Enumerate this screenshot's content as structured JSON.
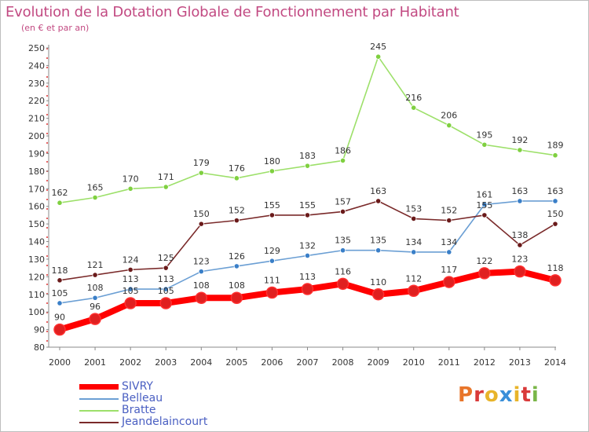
{
  "title": "Evolution de la Dotation Globale de Fonctionnement par Habitant",
  "subtitle": "(en € et par an)",
  "logo": {
    "text": "Proxiti",
    "colors": [
      "#e8752a",
      "#d93a3a",
      "#e8b42a",
      "#3a8fd9",
      "#e8b42a",
      "#d93a3a",
      "#7ab648"
    ]
  },
  "chart_data": {
    "type": "line",
    "x": [
      "2000",
      "2001",
      "2002",
      "2003",
      "2004",
      "2005",
      "2006",
      "2007",
      "2008",
      "2009",
      "2010",
      "2011",
      "2012",
      "2013",
      "2014"
    ],
    "ylim": [
      80,
      250
    ],
    "yticks": [
      80,
      90,
      100,
      110,
      120,
      130,
      140,
      150,
      160,
      170,
      180,
      190,
      200,
      210,
      220,
      230,
      240,
      250
    ],
    "grid": false,
    "legend_position": "bottom-left",
    "series": [
      {
        "name": "SIVRY",
        "color": "#ff0000",
        "marker_fill": "#e02020",
        "bold": true,
        "values": [
          90,
          96,
          105,
          105,
          108,
          108,
          111,
          113,
          116,
          110,
          112,
          117,
          122,
          123,
          118
        ],
        "labels": [
          "90",
          "96",
          "105",
          "105",
          "108",
          "108",
          "111",
          "113",
          "116",
          "110",
          "112",
          "117",
          "122",
          "123",
          "118"
        ]
      },
      {
        "name": "Belleau",
        "color": "#6b9fd4",
        "marker_fill": "#3a7fc8",
        "bold": false,
        "values": [
          105,
          108,
          113,
          113,
          123,
          126,
          129,
          132,
          135,
          135,
          134,
          134,
          161,
          163,
          163
        ],
        "labels": [
          "105",
          "108",
          "113",
          "113",
          "123",
          "126",
          "129",
          "132",
          "135",
          "135",
          "134",
          "134",
          "161",
          "163",
          "163"
        ]
      },
      {
        "name": "Bratte",
        "color": "#9de06a",
        "marker_fill": "#7fd040",
        "bold": false,
        "values": [
          162,
          165,
          170,
          171,
          179,
          176,
          180,
          183,
          186,
          245,
          216,
          206,
          195,
          192,
          189
        ],
        "labels": [
          "162",
          "165",
          "170",
          "171",
          "179",
          "176",
          "180",
          "183",
          "186",
          "245",
          "216",
          "206",
          "195",
          "192",
          "189"
        ]
      },
      {
        "name": "Jeandelaincourt",
        "color": "#7a2a2a",
        "marker_fill": "#6a1a1a",
        "bold": false,
        "values": [
          118,
          121,
          124,
          125,
          150,
          152,
          155,
          155,
          157,
          163,
          153,
          152,
          155,
          138,
          150
        ],
        "labels": [
          "118",
          "121",
          "124",
          "125",
          "150",
          "152",
          "155",
          "155",
          "157",
          "163",
          "153",
          "152",
          "155",
          "138",
          "150"
        ]
      }
    ]
  }
}
